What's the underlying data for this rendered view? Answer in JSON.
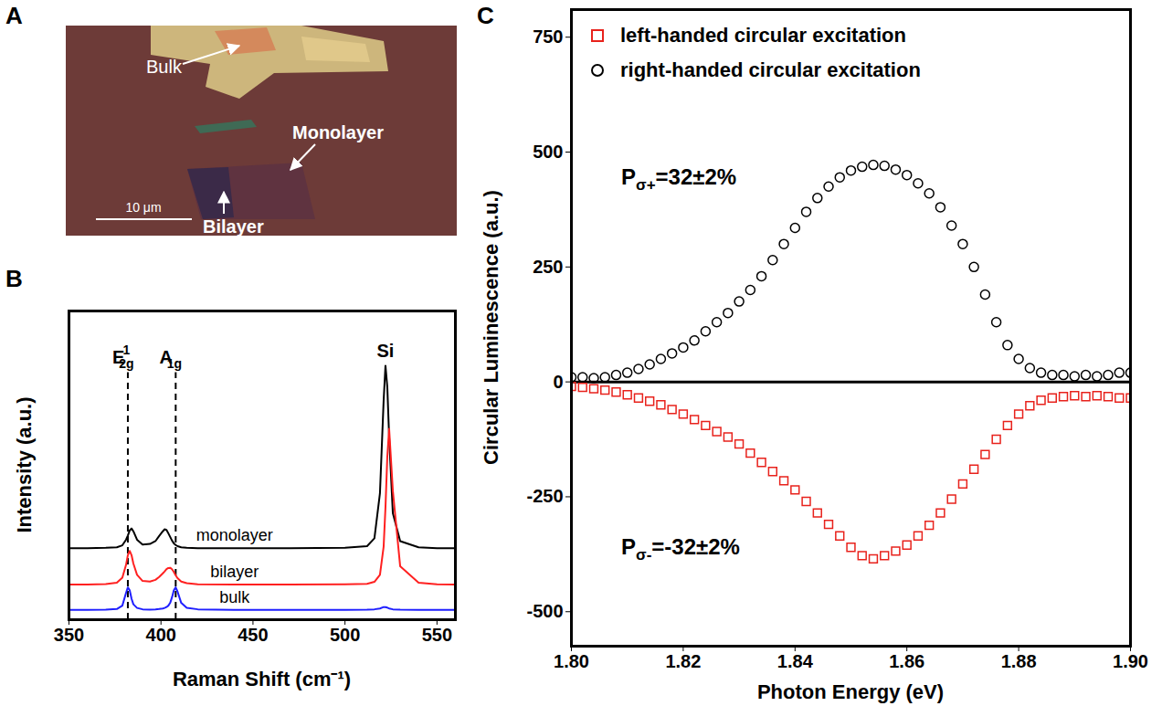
{
  "chart_data": [
    {
      "panel": "A",
      "type": "image",
      "labels": [
        "Bulk",
        "Monolayer",
        "Bilayer"
      ],
      "scale_bar": "10 μm"
    },
    {
      "panel": "B",
      "type": "line",
      "xlabel": "Raman Shift (cm⁻¹)",
      "ylabel": "Intensity (a.u.)",
      "x": [
        350,
        360,
        370,
        376,
        379,
        381,
        382,
        383,
        384,
        385,
        387,
        390,
        394,
        397,
        399,
        401,
        402,
        403,
        404,
        405,
        406,
        407,
        408,
        409,
        411,
        414,
        420,
        440,
        470,
        500,
        512,
        516,
        519,
        521,
        522,
        523,
        524,
        526,
        530,
        540,
        550,
        560
      ],
      "series": [
        {
          "name": "monolayer",
          "color": "#000000",
          "values": [
            2.55,
            2.55,
            2.56,
            2.58,
            2.65,
            2.85,
            3.0,
            3.18,
            3.25,
            3.15,
            2.85,
            2.68,
            2.7,
            2.8,
            2.98,
            3.15,
            3.22,
            3.2,
            3.08,
            2.95,
            2.82,
            2.72,
            2.66,
            2.62,
            2.58,
            2.56,
            2.55,
            2.55,
            2.55,
            2.56,
            2.62,
            2.9,
            4.5,
            7.8,
            9.05,
            8.3,
            6.5,
            3.8,
            2.8,
            2.58,
            2.55,
            2.55
          ]
        },
        {
          "name": "bilayer",
          "color": "#ff2020",
          "values": [
            1.25,
            1.25,
            1.27,
            1.32,
            1.5,
            1.95,
            2.3,
            2.45,
            2.3,
            2.0,
            1.6,
            1.38,
            1.36,
            1.42,
            1.52,
            1.65,
            1.72,
            1.8,
            1.84,
            1.85,
            1.8,
            1.7,
            1.58,
            1.48,
            1.36,
            1.3,
            1.26,
            1.25,
            1.25,
            1.26,
            1.28,
            1.35,
            1.6,
            2.6,
            4.0,
            5.8,
            6.8,
            4.6,
            1.9,
            1.32,
            1.26,
            1.25
          ]
        },
        {
          "name": "bulk",
          "color": "#1f1fff",
          "values": [
            0.35,
            0.35,
            0.36,
            0.38,
            0.5,
            0.95,
            1.15,
            1.05,
            0.75,
            0.55,
            0.42,
            0.37,
            0.36,
            0.37,
            0.38,
            0.4,
            0.42,
            0.45,
            0.5,
            0.6,
            0.8,
            1.05,
            1.15,
            1.0,
            0.6,
            0.42,
            0.37,
            0.35,
            0.35,
            0.35,
            0.36,
            0.37,
            0.4,
            0.45,
            0.45,
            0.43,
            0.4,
            0.37,
            0.36,
            0.35,
            0.35,
            0.35
          ]
        }
      ],
      "xlim": [
        350,
        560
      ],
      "xticks": [
        350,
        400,
        450,
        500,
        550
      ],
      "ylim": [
        0,
        11
      ],
      "tick_labels": "x",
      "grid": false,
      "reference_lines": [
        {
          "x": 382,
          "base": "E",
          "sub": "2g",
          "sup": "1"
        },
        {
          "x": 408,
          "base": "A",
          "sub": "1g"
        }
      ],
      "annotations": [
        {
          "text": "Si",
          "x": 522
        }
      ]
    },
    {
      "panel": "C",
      "type": "scatter",
      "xlabel": "Photon Energy (eV)",
      "ylabel": "Circular Luminescence (a.u.)",
      "x": [
        1.8,
        1.802,
        1.804,
        1.806,
        1.808,
        1.81,
        1.812,
        1.814,
        1.816,
        1.818,
        1.82,
        1.822,
        1.824,
        1.826,
        1.828,
        1.83,
        1.832,
        1.834,
        1.836,
        1.838,
        1.84,
        1.842,
        1.844,
        1.846,
        1.848,
        1.85,
        1.852,
        1.854,
        1.856,
        1.858,
        1.86,
        1.862,
        1.864,
        1.866,
        1.868,
        1.87,
        1.872,
        1.874,
        1.876,
        1.878,
        1.88,
        1.882,
        1.884,
        1.886,
        1.888,
        1.89,
        1.892,
        1.894,
        1.896,
        1.898,
        1.9
      ],
      "series": [
        {
          "name": "left-handed circular excitation",
          "color": "#e8221c",
          "marker": "square",
          "values": [
            -10,
            -12,
            -15,
            -18,
            -22,
            -28,
            -35,
            -42,
            -50,
            -60,
            -70,
            -82,
            -95,
            -108,
            -120,
            -135,
            -155,
            -175,
            -195,
            -215,
            -235,
            -260,
            -285,
            -310,
            -335,
            -360,
            -378,
            -385,
            -378,
            -368,
            -355,
            -335,
            -312,
            -285,
            -255,
            -222,
            -190,
            -158,
            -125,
            -95,
            -70,
            -52,
            -40,
            -35,
            -32,
            -30,
            -32,
            -30,
            -32,
            -35,
            -35
          ]
        },
        {
          "name": "right-handed circular excitation",
          "color": "#000000",
          "marker": "circle",
          "values": [
            10,
            10,
            8,
            10,
            15,
            20,
            28,
            38,
            50,
            62,
            75,
            90,
            110,
            130,
            150,
            175,
            200,
            230,
            265,
            300,
            335,
            370,
            400,
            425,
            445,
            460,
            468,
            472,
            470,
            462,
            450,
            432,
            410,
            380,
            340,
            300,
            250,
            190,
            130,
            80,
            50,
            30,
            20,
            15,
            15,
            12,
            15,
            12,
            15,
            20,
            20
          ]
        }
      ],
      "xlim": [
        1.8,
        1.9
      ],
      "xticks": [
        {
          "value": 1.8,
          "label": "1.80"
        },
        {
          "value": 1.82,
          "label": "1.82"
        },
        {
          "value": 1.84,
          "label": "1.84"
        },
        {
          "value": 1.86,
          "label": "1.86"
        },
        {
          "value": 1.88,
          "label": "1.88"
        },
        {
          "value": 1.9,
          "label": "1.90"
        }
      ],
      "ylim": [
        -575,
        810
      ],
      "yticks": [
        -500,
        -250,
        0,
        250,
        500,
        750
      ],
      "legend": "top-left",
      "grid": false,
      "annotations": [
        {
          "base": "P",
          "sub": "σ+",
          "tail": "=32±2%"
        },
        {
          "base": "P",
          "sub": "σ-",
          "tail": "=-32±2%"
        }
      ]
    }
  ]
}
